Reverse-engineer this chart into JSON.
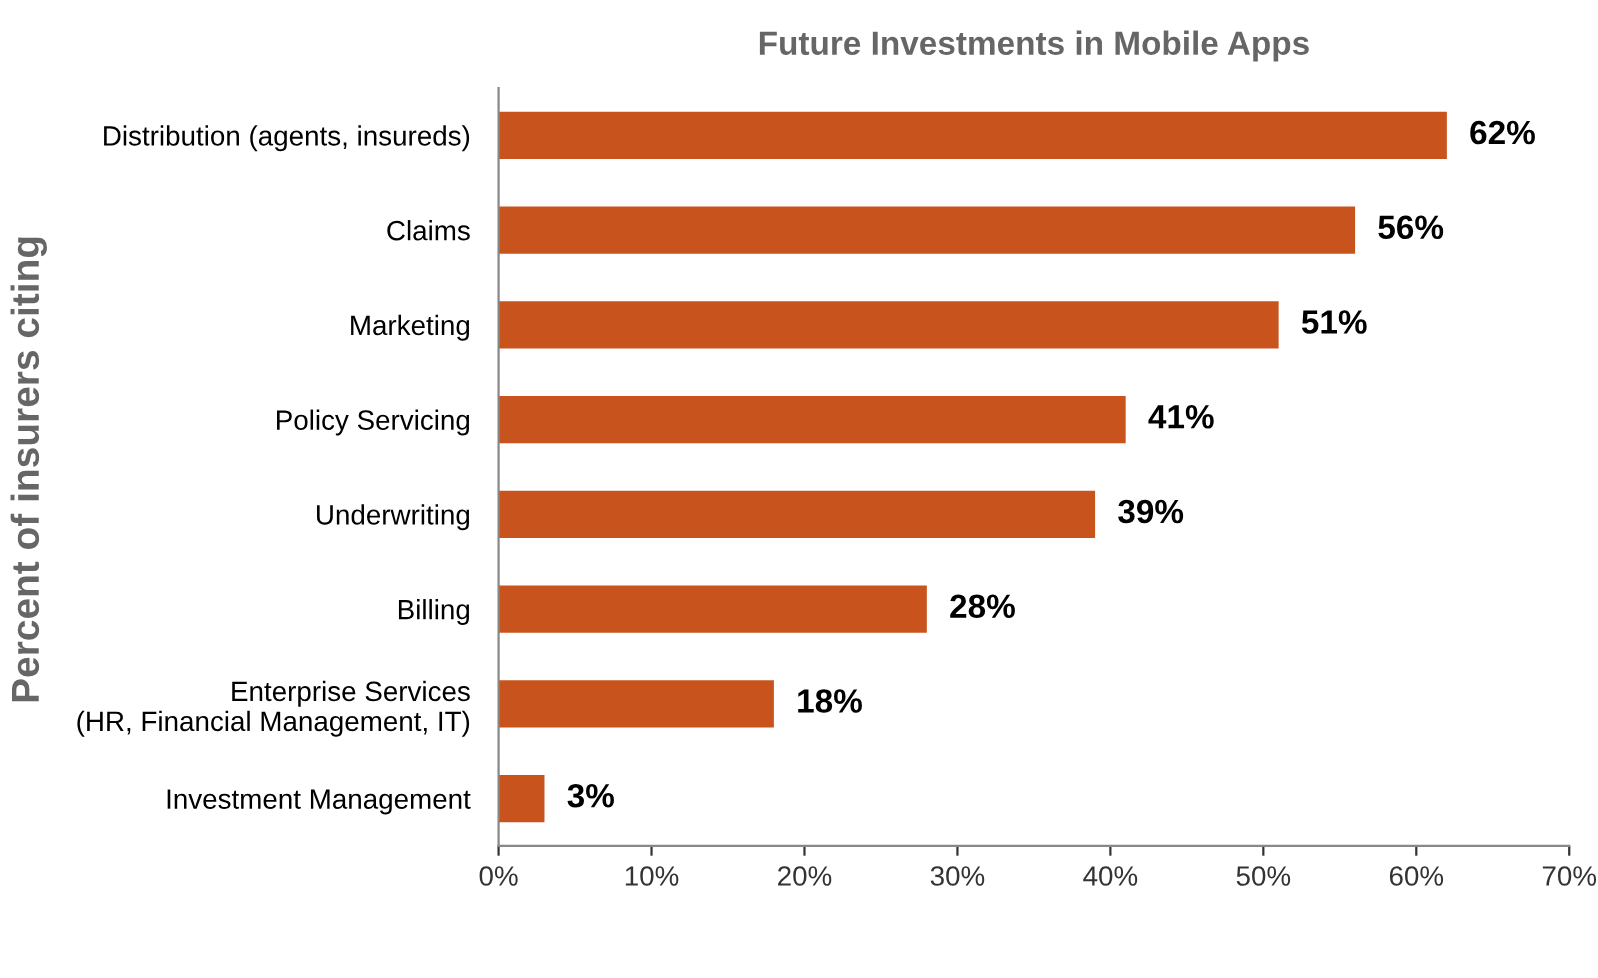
{
  "chart_data": {
    "type": "bar",
    "orientation": "horizontal",
    "title": "Future Investments in Mobile Apps",
    "ylabel": "Percent of insurers citing",
    "categories": [
      "Distribution (agents, insureds)",
      "Claims",
      "Marketing",
      "Policy Servicing",
      "Underwriting",
      "Billing",
      "Enterprise Services\n(HR, Financial Management, IT)",
      "Investment Management"
    ],
    "values": [
      62,
      56,
      51,
      41,
      39,
      28,
      18,
      3
    ],
    "value_labels": [
      "62%",
      "56%",
      "51%",
      "41%",
      "39%",
      "28%",
      "18%",
      "3%"
    ],
    "color": "#c8531c",
    "xlim": [
      0,
      70
    ],
    "xticks": [
      {
        "value": 0,
        "label": "0%"
      },
      {
        "value": 10,
        "label": "10%"
      },
      {
        "value": 20,
        "label": "20%"
      },
      {
        "value": 30,
        "label": "30%"
      },
      {
        "value": 40,
        "label": "40%"
      },
      {
        "value": 50,
        "label": "50%"
      },
      {
        "value": 60,
        "label": "60%"
      },
      {
        "value": 70,
        "label": "70%"
      }
    ],
    "grid": false,
    "legend": false
  }
}
